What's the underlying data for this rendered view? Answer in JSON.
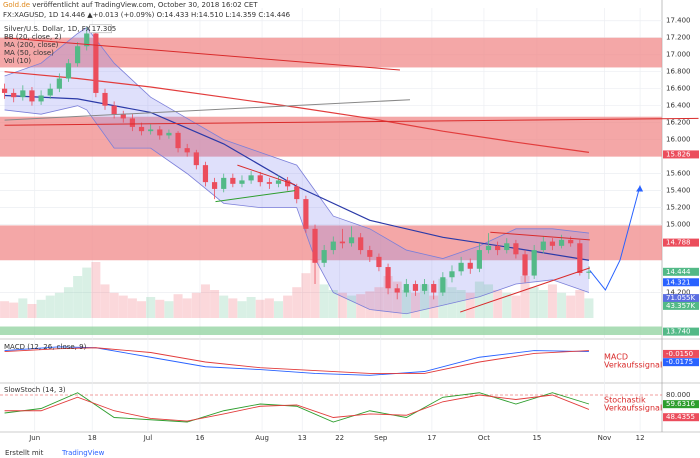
{
  "header": {
    "publisher": "Gold.de",
    "published": " veröffentlicht auf TradingView.com, October 30, 2018 16:02 CET",
    "symbol_line": "FX:XAGUSD, 1D 14.446 ▲+0.013 (+0.09%) O:14.433 H:14.510 L:14.359 C:14.446"
  },
  "footer": {
    "made_with": "Erstellt mit",
    "brand": "TradingView"
  },
  "chart_data": [
    {
      "type": "candlestick",
      "title": "Silver/U.S. Dollar, 1D, FX",
      "indicators": [
        "BB (20, close, 2)",
        "MA (200, close)",
        "MA (50, close)",
        "Vol (10)"
      ],
      "up_color": "#53b987",
      "down_color": "#eb4d5c",
      "xlim": [
        -0.5,
        72
      ],
      "xticks": [
        {
          "value": 3.3,
          "label": "Jun"
        },
        {
          "value": 9.6,
          "label": "18"
        },
        {
          "value": 15.7,
          "label": "Jul"
        },
        {
          "value": 21.4,
          "label": "16"
        },
        {
          "value": 28.2,
          "label": "Aug"
        },
        {
          "value": 32.6,
          "label": "13"
        },
        {
          "value": 36.7,
          "label": "22"
        },
        {
          "value": 41.2,
          "label": "Sep"
        },
        {
          "value": 46.8,
          "label": "17"
        },
        {
          "value": 52.5,
          "label": "Oct"
        },
        {
          "value": 58.3,
          "label": "15"
        },
        {
          "value": 65.7,
          "label": "Nov"
        },
        {
          "value": 69.6,
          "label": "12"
        }
      ],
      "ylim": [
        13.7,
        17.55
      ],
      "yticks": [
        {
          "value": 17.4,
          "label": "17.400"
        },
        {
          "value": 17.2,
          "label": "17.200"
        },
        {
          "value": 17,
          "label": "17.000"
        },
        {
          "value": 16.8,
          "label": "16.800"
        },
        {
          "value": 16.6,
          "label": "16.600"
        },
        {
          "value": 16.4,
          "label": "16.400"
        },
        {
          "value": 16.2,
          "label": "16.200"
        },
        {
          "value": 16,
          "label": "16.000"
        },
        {
          "value": 15.6,
          "label": "15.600"
        },
        {
          "value": 15.4,
          "label": "15.400"
        },
        {
          "value": 15.2,
          "label": "15.200"
        },
        {
          "value": 15,
          "label": "15.000"
        },
        {
          "value": 14.2,
          "label": "14.200"
        }
      ],
      "grid": true,
      "open": [
        16.6,
        16.55,
        16.5,
        16.58,
        16.45,
        16.52,
        16.6,
        16.72,
        16.9,
        17.1,
        17.25,
        16.55,
        16.4,
        16.3,
        16.25,
        16.15,
        16.1,
        16.12,
        16.05,
        16.08,
        15.9,
        15.85,
        15.7,
        15.5,
        15.42,
        15.55,
        15.48,
        15.52,
        15.58,
        15.5,
        15.48,
        15.52,
        15.45,
        15.3,
        14.95,
        14.55,
        14.7,
        14.8,
        14.78,
        14.85,
        14.7,
        14.62,
        14.5,
        14.25,
        14.2,
        14.3,
        14.22,
        14.3,
        14.2,
        14.38,
        14.45,
        14.55,
        14.48,
        14.7,
        14.75,
        14.7,
        14.78,
        14.65,
        14.4,
        14.7,
        14.8,
        14.75,
        14.82,
        14.78,
        14.433
      ],
      "high": [
        16.66,
        16.6,
        16.64,
        16.62,
        16.58,
        16.66,
        16.78,
        16.95,
        17.15,
        17.32,
        17.28,
        16.6,
        16.45,
        16.34,
        16.3,
        16.2,
        16.18,
        16.16,
        16.12,
        16.1,
        15.95,
        15.88,
        15.74,
        15.55,
        15.6,
        15.6,
        15.58,
        15.63,
        15.62,
        15.55,
        15.58,
        15.56,
        15.48,
        15.34,
        15.0,
        14.76,
        14.86,
        14.95,
        14.98,
        14.9,
        14.75,
        14.66,
        14.54,
        14.3,
        14.36,
        14.34,
        14.36,
        14.34,
        14.44,
        14.52,
        14.62,
        14.6,
        14.78,
        14.9,
        14.8,
        14.84,
        14.82,
        14.7,
        14.76,
        14.86,
        14.84,
        14.88,
        14.86,
        14.82,
        14.51
      ],
      "low": [
        16.48,
        16.44,
        16.46,
        16.4,
        16.41,
        16.48,
        16.56,
        16.68,
        16.86,
        17.05,
        16.5,
        16.35,
        16.25,
        16.2,
        16.1,
        16.05,
        16.06,
        16.0,
        16.01,
        15.85,
        15.8,
        15.65,
        15.45,
        15.3,
        15.38,
        15.44,
        15.44,
        15.48,
        15.45,
        15.42,
        15.44,
        15.4,
        15.25,
        14.9,
        14.3,
        14.5,
        14.65,
        14.72,
        14.74,
        14.65,
        14.56,
        14.45,
        14.18,
        14.12,
        14.15,
        14.16,
        14.18,
        14.12,
        14.16,
        14.32,
        14.4,
        14.42,
        14.44,
        14.66,
        14.64,
        14.66,
        14.6,
        14.32,
        14.36,
        14.66,
        14.7,
        14.72,
        14.74,
        14.4,
        14.359
      ],
      "close": [
        16.55,
        16.5,
        16.58,
        16.45,
        16.52,
        16.6,
        16.72,
        16.9,
        17.1,
        17.25,
        16.55,
        16.4,
        16.3,
        16.25,
        16.15,
        16.1,
        16.12,
        16.05,
        16.08,
        15.9,
        15.85,
        15.7,
        15.5,
        15.42,
        15.55,
        15.48,
        15.52,
        15.58,
        15.5,
        15.48,
        15.52,
        15.45,
        15.3,
        14.95,
        14.55,
        14.7,
        14.8,
        14.78,
        14.85,
        14.7,
        14.62,
        14.5,
        14.25,
        14.2,
        14.3,
        14.22,
        14.3,
        14.2,
        14.38,
        14.45,
        14.55,
        14.48,
        14.7,
        14.75,
        14.7,
        14.78,
        14.65,
        14.4,
        14.7,
        14.8,
        14.75,
        14.82,
        14.78,
        14.43,
        14.446
      ],
      "volume": [
        60,
        55,
        70,
        50,
        65,
        80,
        90,
        110,
        150,
        180,
        200,
        120,
        90,
        80,
        70,
        60,
        75,
        65,
        60,
        85,
        70,
        90,
        120,
        100,
        80,
        70,
        60,
        75,
        65,
        70,
        60,
        80,
        110,
        160,
        210,
        120,
        100,
        90,
        80,
        85,
        95,
        110,
        150,
        130,
        100,
        90,
        120,
        80,
        140,
        110,
        100,
        90,
        130,
        120,
        100,
        90,
        80,
        150,
        110,
        100,
        120,
        90,
        80,
        100,
        70
      ],
      "vlim": [
        0,
        250
      ],
      "series": [
        {
          "name": "BB upper",
          "color": "#7b7fd9",
          "x": [
            0,
            4,
            8,
            9,
            12,
            16,
            20,
            24,
            28,
            32,
            34,
            36,
            40,
            44,
            48,
            52,
            56,
            60,
            64
          ],
          "values": [
            16.75,
            16.9,
            17.25,
            17.32,
            16.9,
            16.5,
            16.25,
            16.0,
            15.85,
            15.7,
            15.4,
            15.1,
            14.95,
            14.7,
            14.6,
            14.75,
            14.95,
            14.95,
            14.9
          ]
        },
        {
          "name": "BB lower",
          "color": "#7b7fd9",
          "x": [
            0,
            4,
            8,
            9,
            12,
            16,
            20,
            24,
            28,
            32,
            34,
            36,
            40,
            44,
            48,
            52,
            56,
            60,
            64
          ],
          "values": [
            16.35,
            16.3,
            16.4,
            16.35,
            15.9,
            15.9,
            15.6,
            15.25,
            15.2,
            15.2,
            14.6,
            14.2,
            14.0,
            13.95,
            14.05,
            14.15,
            14.3,
            14.35,
            14.2
          ]
        },
        {
          "name": "MA 200",
          "color": "#e23c3c",
          "x": [
            0,
            8,
            16,
            24,
            32,
            40,
            48,
            56,
            64
          ],
          "values": [
            16.8,
            16.72,
            16.62,
            16.5,
            16.38,
            16.25,
            16.1,
            15.97,
            15.85
          ]
        },
        {
          "name": "MA 50",
          "color": "#2b3aa8",
          "x": [
            0,
            8,
            16,
            24,
            32,
            40,
            48,
            56,
            64
          ],
          "values": [
            16.52,
            16.48,
            16.32,
            15.95,
            15.45,
            15.05,
            14.85,
            14.72,
            14.58
          ]
        }
      ],
      "zones": [
        {
          "from": 16.85,
          "to": 17.2,
          "color": "#f08a8a"
        },
        {
          "from": 15.8,
          "to": 16.27,
          "color": "#f08a8a"
        },
        {
          "from": 14.58,
          "to": 14.99,
          "color": "#f08a8a"
        },
        {
          "from": 13.7,
          "to": 13.8,
          "color": "#8fd19e"
        }
      ],
      "drawings": [
        {
          "color": "#d92b2b",
          "x": [
            0,
            43.3
          ],
          "values": [
            17.2,
            16.82
          ]
        },
        {
          "color": "#d92b2b",
          "x": [
            0,
            76
          ],
          "values": [
            16.17,
            16.25
          ]
        },
        {
          "color": "#888888",
          "x": [
            0,
            44.4
          ],
          "values": [
            16.23,
            16.47
          ]
        },
        {
          "color": "#d92b2b",
          "x": [
            25.5,
            31.8
          ],
          "values": [
            15.7,
            15.47
          ]
        },
        {
          "color": "#2e9e2e",
          "x": [
            23.1,
            31.8
          ],
          "values": [
            15.27,
            15.4
          ]
        },
        {
          "color": "#d92b2b",
          "x": [
            53.2,
            64.1
          ],
          "values": [
            14.91,
            14.82
          ]
        },
        {
          "color": "#d92b2b",
          "x": [
            49.9,
            64.1
          ],
          "values": [
            13.97,
            14.49
          ]
        },
        {
          "color": "#2962ff",
          "x": [
            64.1,
            65.8,
            67.4,
            69.6
          ],
          "values": [
            14.46,
            14.23,
            14.58,
            15.46
          ]
        }
      ],
      "peak_label": {
        "value": 17.305,
        "label": "17.305"
      },
      "price_labels": [
        {
          "value": 15.826,
          "label": "15.826",
          "color": "#eb4d5c"
        },
        {
          "value": 14.788,
          "label": "14.788",
          "color": "#eb4d5c"
        },
        {
          "value": 14.444,
          "label": "14.444",
          "color": "#53b987"
        },
        {
          "value": 14.321,
          "label": "14.321",
          "color": "#2962ff"
        },
        {
          "value": 13.74,
          "label": "13.740",
          "color": "#53b987"
        }
      ],
      "volume_labels": [
        {
          "value": 71.055,
          "label": "71.055K",
          "color": "#5b6ee1"
        },
        {
          "value": 43.357,
          "label": "43.357K",
          "color": "#53b987"
        }
      ]
    },
    {
      "type": "line",
      "title": "MACD (12, 26, close, 9)",
      "ylim": [
        -0.3,
        0.1
      ],
      "series": [
        {
          "name": "MACD",
          "color": "#2962ff",
          "x": [
            0,
            6,
            10,
            16,
            22,
            28,
            34,
            40,
            46,
            52,
            58,
            64
          ],
          "values": [
            0.02,
            0.06,
            0.05,
            -0.05,
            -0.15,
            -0.18,
            -0.22,
            -0.24,
            -0.2,
            -0.05,
            0.02,
            0.01
          ]
        },
        {
          "name": "Signal",
          "color": "#e23c3c",
          "x": [
            0,
            6,
            10,
            16,
            22,
            28,
            34,
            40,
            46,
            52,
            58,
            64
          ],
          "values": [
            0.01,
            0.04,
            0.05,
            0.0,
            -0.1,
            -0.16,
            -0.19,
            -0.22,
            -0.22,
            -0.1,
            -0.01,
            0.02
          ]
        }
      ],
      "value_labels": [
        {
          "value": -0.015,
          "label": "-0.0150",
          "color": "#eb4d5c"
        },
        {
          "value": -0.0175,
          "label": "-0.0175",
          "color": "#2962ff"
        }
      ],
      "annotation": [
        "MACD",
        "Verkaufssignal"
      ]
    },
    {
      "type": "line",
      "title": "SlowStoch (14, 3)",
      "ylim": [
        0,
        100
      ],
      "yticks": [
        {
          "value": 80,
          "label": "80.000"
        }
      ],
      "series": [
        {
          "name": "%K",
          "color": "#2e9e2e",
          "x": [
            0,
            4,
            8,
            12,
            16,
            20,
            24,
            28,
            32,
            36,
            40,
            44,
            48,
            52,
            56,
            60,
            64
          ],
          "values": [
            40,
            50,
            85,
            30,
            25,
            20,
            45,
            60,
            55,
            20,
            45,
            30,
            75,
            85,
            60,
            85,
            60
          ]
        },
        {
          "name": "%D",
          "color": "#e23c3c",
          "x": [
            0,
            4,
            8,
            12,
            16,
            20,
            24,
            28,
            32,
            36,
            40,
            44,
            48,
            52,
            56,
            60,
            64
          ],
          "values": [
            45,
            45,
            75,
            45,
            28,
            22,
            38,
            55,
            58,
            30,
            38,
            35,
            65,
            80,
            70,
            80,
            48
          ]
        }
      ],
      "value_labels": [
        {
          "value": 59.6316,
          "label": "59.6316",
          "color": "#2e9e2e"
        },
        {
          "value": 48.4355,
          "label": "48.4355",
          "color": "#eb4d5c"
        }
      ],
      "annotation": [
        "Stochastik",
        "Verkaufssignal"
      ]
    }
  ]
}
